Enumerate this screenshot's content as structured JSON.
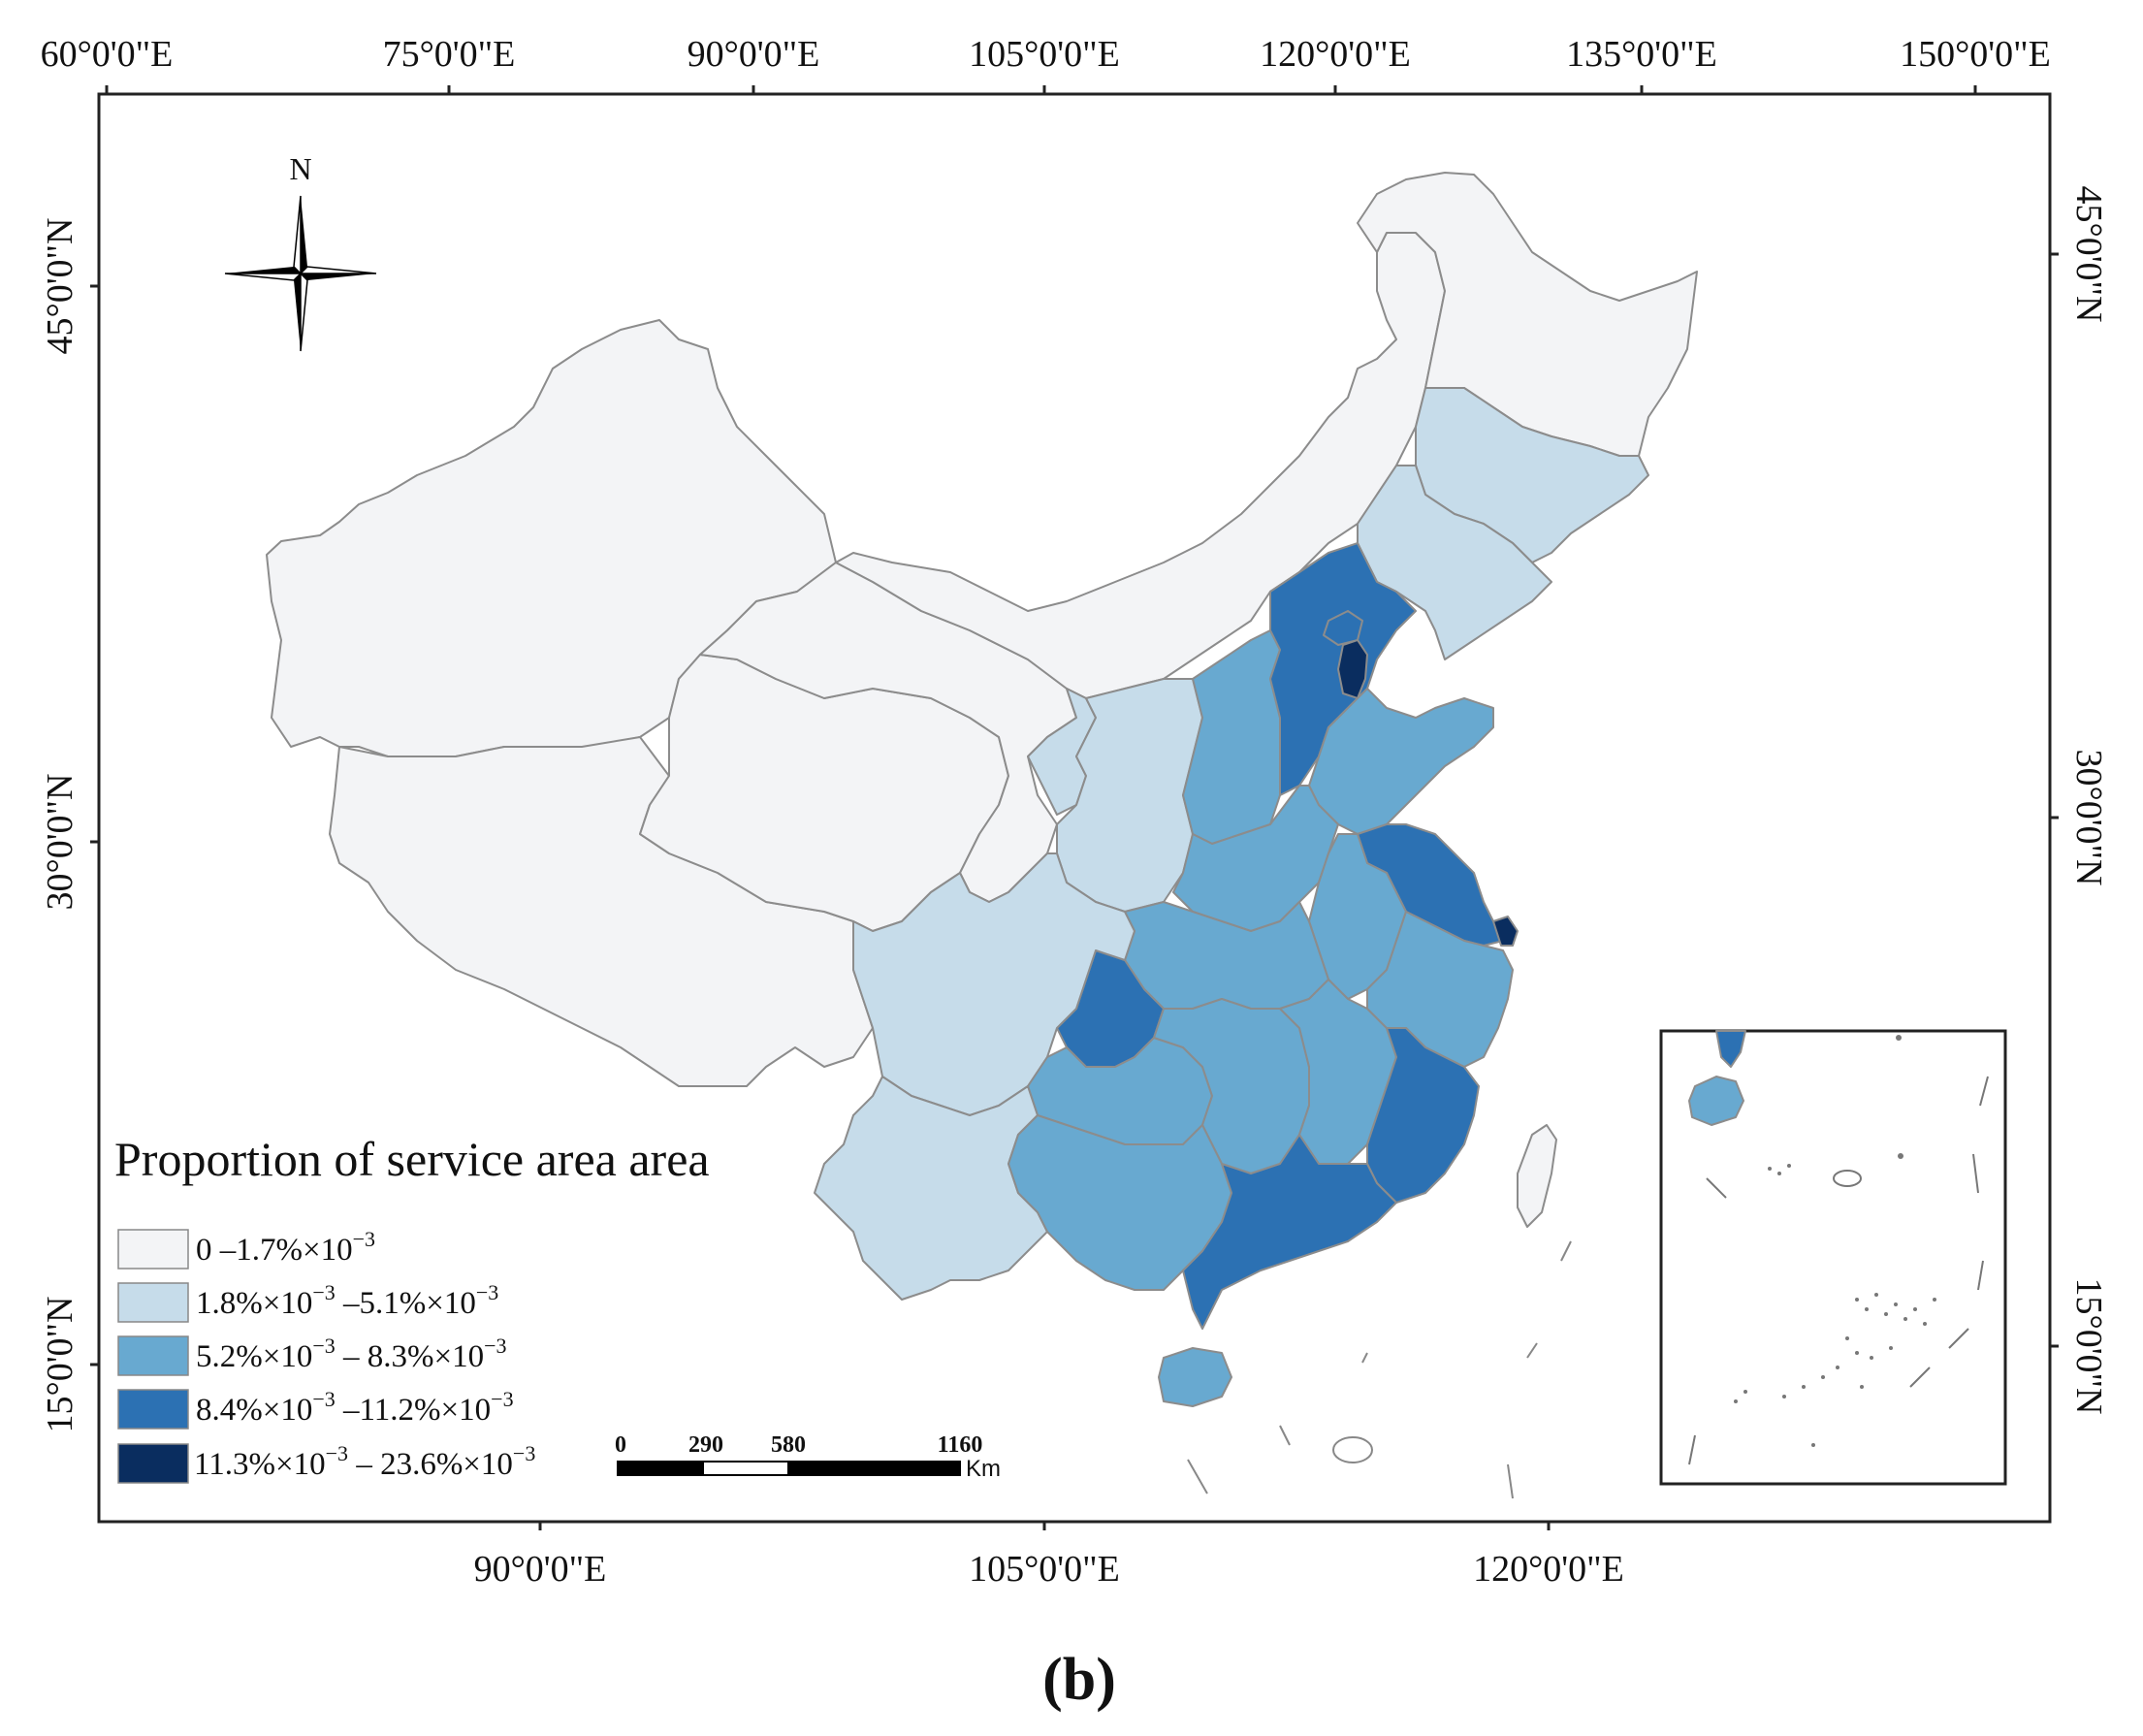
{
  "map": {
    "caption": "(b)",
    "north_label": "N",
    "grid_labels": {
      "top": [
        "60°0'0\"E",
        "75°0'0\"E",
        "90°0'0\"E",
        "105°0'0\"E",
        "120°0'0\"E",
        "135°0'0\"E",
        "150°0'0\"E"
      ],
      "bottom": [
        "90°0'0\"E",
        "105°0'0\"E",
        "120°0'0\"E"
      ],
      "left": [
        "45°0'0\"N",
        "30°0'0\"N",
        "15°0'0\"N"
      ],
      "right": [
        "45°0'0\"N",
        "30°0'0\"N",
        "15°0'0\"N"
      ]
    },
    "legend": {
      "title": "Proportion of service area area",
      "classes": [
        {
          "label": "0 –1.7%×10",
          "sup": "−3",
          "tail": "",
          "tail_sup": "",
          "color": "#f3f4f6"
        },
        {
          "label": "1.8%×10",
          "sup": "−3",
          "tail": " –5.1%×10",
          "tail_sup": "−3",
          "color": "#c6dcea"
        },
        {
          "label": "5.2%×10",
          "sup": "−3",
          "tail": " – 8.3%×10",
          "tail_sup": "−3",
          "color": "#68a9d0"
        },
        {
          "label": "8.4%×10",
          "sup": "−3",
          "tail": " –11.2%×10",
          "tail_sup": "−3",
          "color": "#2c71b3"
        },
        {
          "label": "11.3%×10",
          "sup": "−3",
          "tail": " – 23.6%×10",
          "tail_sup": "−3",
          "color": "#0a2d5f"
        }
      ]
    },
    "scale_bar": {
      "ticks": [
        "0",
        "290",
        "580",
        "1160"
      ],
      "unit": "Km"
    },
    "colors": {
      "class1": "#f3f4f6",
      "class2": "#c6dcea",
      "class3": "#68a9d0",
      "class4": "#2c71b3",
      "class5": "#0a2d5f"
    }
  }
}
